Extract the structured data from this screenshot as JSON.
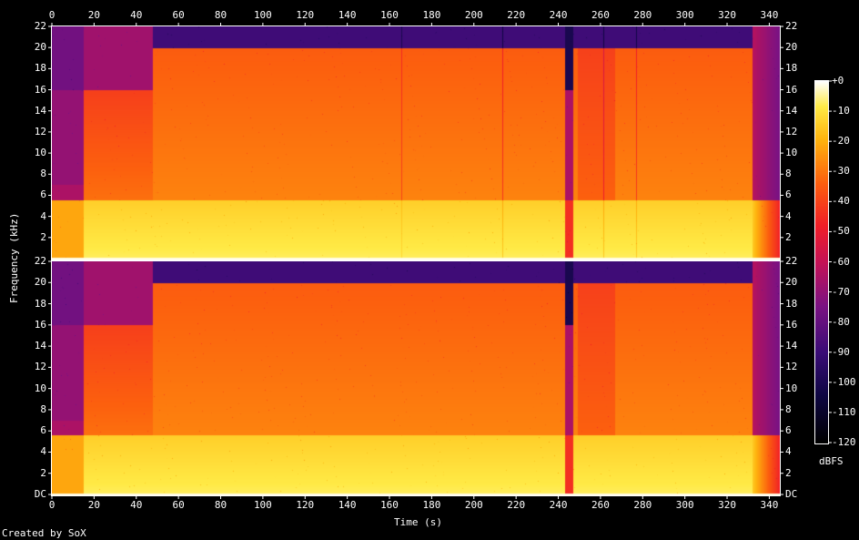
{
  "chart_data": {
    "type": "heatmap",
    "title": "",
    "xlabel": "Time (s)",
    "ylabel": "Frequency (kHz)",
    "x_ticks": [
      0,
      20,
      40,
      60,
      80,
      100,
      120,
      140,
      160,
      180,
      200,
      220,
      240,
      260,
      280,
      300,
      320,
      340
    ],
    "xlim": [
      0,
      345
    ],
    "ylim": [
      0,
      22
    ],
    "channels": [
      {
        "name": "top",
        "y_ticks": [
          "22",
          "20",
          "18",
          "16",
          "14",
          "12",
          "10",
          "8",
          "6",
          "4",
          "2"
        ]
      },
      {
        "name": "bottom",
        "y_ticks": [
          "22",
          "20",
          "18",
          "16",
          "14",
          "12",
          "10",
          "8",
          "6",
          "4",
          "2",
          "DC"
        ]
      }
    ],
    "colorbar": {
      "label": "dBFS",
      "ticks": [
        "+0",
        "-10",
        "-20",
        "-30",
        "-40",
        "-50",
        "-60",
        "-70",
        "-80",
        "-90",
        "-100",
        "-110",
        "-120"
      ],
      "range": [
        -120,
        0
      ]
    },
    "structure": {
      "quiet_intro_end_s": 15,
      "full_band_start_s": 48,
      "gap_start_s": 244,
      "gap_end_s": 248,
      "reduced_mids_s": [
        250,
        268
      ],
      "tail_start_s": 333,
      "end_s": 345,
      "high_cutoff_khz": 20
    }
  },
  "footer": {
    "credit": "Created by SoX"
  }
}
